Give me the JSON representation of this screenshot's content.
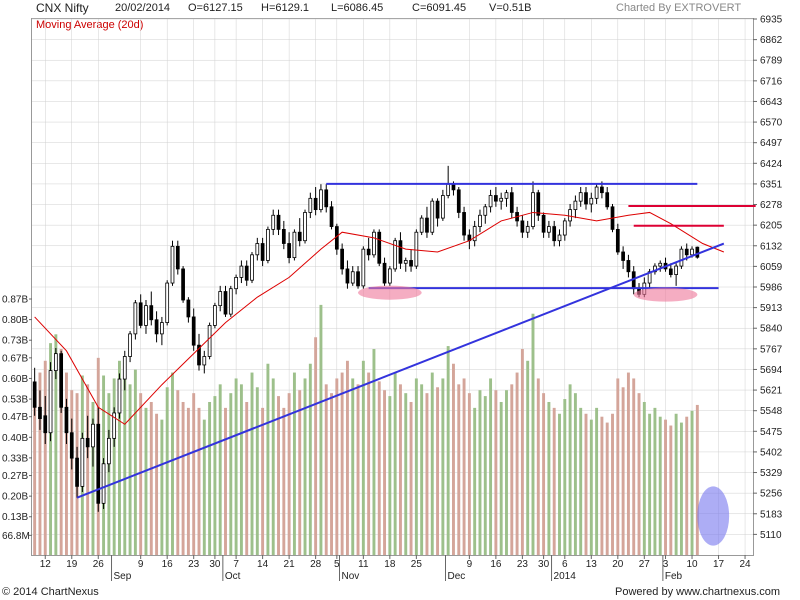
{
  "header": {
    "symbol": "CNX Nifty",
    "date": "20/02/2014",
    "open": "O=6127.15",
    "high": "H=6129.1",
    "low": "L=6086.45",
    "close": "C=6091.45",
    "volume": "V=0.51B",
    "charted_by": "Charted By EXTROVERT"
  },
  "footer": {
    "copyright": "© 2014 ChartNexus",
    "powered": "Powered by www.chartnexus.com"
  },
  "colors": {
    "up_candle": "#ffffff",
    "down_candle": "#000000",
    "volume_up": "#9dc08b",
    "volume_down": "#d4a59a",
    "moving_average": "#dd0000",
    "trendline": "#3333dd",
    "resistance": "#dd0033",
    "ellipse_pink": "#ee7799",
    "ellipse_blue": "#7777ee",
    "grid": "#d0d0d0"
  },
  "chart_data": {
    "type": "candlestick",
    "title": "CNX Nifty",
    "indicator_label": "Moving Average (20d)",
    "price_axis": {
      "ticks": [
        6935,
        6862,
        6789,
        6716,
        6643,
        6570,
        6497,
        6424,
        6351,
        6278,
        6205,
        6132,
        6059,
        5986,
        5913,
        5840,
        5767,
        5694,
        5621,
        5548,
        5475,
        5402,
        5329,
        5256,
        5183,
        5110
      ],
      "range": [
        5037,
        6935
      ]
    },
    "volume_axis": {
      "ticks": [
        "0.87B",
        "0.80B",
        "0.73B",
        "0.67B",
        "0.60B",
        "0.53B",
        "0.47B",
        "0.40B",
        "0.33B",
        "0.27B",
        "0.20B",
        "0.13B",
        "66.8M"
      ],
      "range_billions": [
        0.0,
        0.87
      ]
    },
    "x_axis": {
      "day_labels": [
        {
          "label": "12",
          "i": 2
        },
        {
          "label": "19",
          "i": 7
        },
        {
          "label": "26",
          "i": 12
        },
        {
          "label": "9",
          "i": 20
        },
        {
          "label": "16",
          "i": 25
        },
        {
          "label": "23",
          "i": 30
        },
        {
          "label": "30",
          "i": 34
        },
        {
          "label": "7",
          "i": 38
        },
        {
          "label": "14",
          "i": 43
        },
        {
          "label": "21",
          "i": 48
        },
        {
          "label": "28",
          "i": 53
        },
        {
          "label": "5",
          "i": 57
        },
        {
          "label": "11",
          "i": 62
        },
        {
          "label": "18",
          "i": 67
        },
        {
          "label": "25",
          "i": 72
        },
        {
          "label": "9",
          "i": 82
        },
        {
          "label": "16",
          "i": 87
        },
        {
          "label": "23",
          "i": 92
        },
        {
          "label": "30",
          "i": 96
        },
        {
          "label": "6",
          "i": 100
        },
        {
          "label": "13",
          "i": 105
        },
        {
          "label": "20",
          "i": 110
        },
        {
          "label": "27",
          "i": 115
        },
        {
          "label": "3",
          "i": 119
        },
        {
          "label": "10",
          "i": 124
        },
        {
          "label": "17",
          "i": 129
        },
        {
          "label": "24",
          "i": 134
        }
      ],
      "month_labels": [
        {
          "label": "Sep",
          "i": 15
        },
        {
          "label": "Oct",
          "i": 36
        },
        {
          "label": "Nov",
          "i": 58
        },
        {
          "label": "Dec",
          "i": 78
        },
        {
          "label": "2014",
          "i": 98
        },
        {
          "label": "Feb",
          "i": 119
        }
      ]
    },
    "candles": [
      [
        5650,
        5700,
        5530,
        5560,
        0.58
      ],
      [
        5560,
        5620,
        5480,
        5520,
        0.62
      ],
      [
        5530,
        5600,
        5430,
        5470,
        0.66
      ],
      [
        5470,
        5720,
        5440,
        5690,
        0.72
      ],
      [
        5690,
        5770,
        5660,
        5750,
        0.75
      ],
      [
        5750,
        5760,
        5540,
        5560,
        0.7
      ],
      [
        5560,
        5590,
        5430,
        5470,
        0.62
      ],
      [
        5470,
        5520,
        5340,
        5380,
        0.56
      ],
      [
        5380,
        5420,
        5240,
        5280,
        0.55
      ],
      [
        5280,
        5470,
        5260,
        5450,
        0.61
      ],
      [
        5450,
        5530,
        5380,
        5420,
        0.58
      ],
      [
        5420,
        5520,
        5350,
        5500,
        0.52
      ],
      [
        5500,
        5560,
        5190,
        5220,
        0.67
      ],
      [
        5220,
        5380,
        5200,
        5360,
        0.61
      ],
      [
        5360,
        5480,
        5330,
        5450,
        0.55
      ],
      [
        5450,
        5560,
        5420,
        5540,
        0.6
      ],
      [
        5540,
        5680,
        5520,
        5660,
        0.66
      ],
      [
        5660,
        5760,
        5620,
        5740,
        0.62
      ],
      [
        5740,
        5830,
        5720,
        5820,
        0.58
      ],
      [
        5820,
        5940,
        5800,
        5930,
        0.63
      ],
      [
        5930,
        5960,
        5840,
        5850,
        0.55
      ],
      [
        5850,
        5940,
        5820,
        5920,
        0.5
      ],
      [
        5920,
        5970,
        5850,
        5870,
        0.52
      ],
      [
        5870,
        5900,
        5790,
        5820,
        0.48
      ],
      [
        5820,
        5880,
        5780,
        5860,
        0.46
      ],
      [
        5860,
        6010,
        5850,
        6000,
        0.57
      ],
      [
        6000,
        6150,
        5990,
        6130,
        0.62
      ],
      [
        6130,
        6150,
        6030,
        6050,
        0.56
      ],
      [
        6050,
        6060,
        5930,
        5940,
        0.52
      ],
      [
        5940,
        5950,
        5860,
        5880,
        0.5
      ],
      [
        5880,
        5910,
        5760,
        5780,
        0.55
      ],
      [
        5780,
        5820,
        5690,
        5710,
        0.5
      ],
      [
        5710,
        5760,
        5680,
        5740,
        0.46
      ],
      [
        5740,
        5860,
        5730,
        5850,
        0.52
      ],
      [
        5850,
        5930,
        5840,
        5920,
        0.54
      ],
      [
        5920,
        5990,
        5900,
        5970,
        0.58
      ],
      [
        5970,
        5990,
        5880,
        5890,
        0.5
      ],
      [
        5890,
        5990,
        5880,
        5980,
        0.55
      ],
      [
        5980,
        6030,
        5960,
        6020,
        0.6
      ],
      [
        6020,
        6080,
        6000,
        6060,
        0.58
      ],
      [
        6060,
        6080,
        5990,
        6010,
        0.52
      ],
      [
        6010,
        6110,
        6000,
        6100,
        0.62
      ],
      [
        6100,
        6160,
        6080,
        6140,
        0.57
      ],
      [
        6140,
        6160,
        6060,
        6080,
        0.5
      ],
      [
        6080,
        6200,
        6070,
        6190,
        0.65
      ],
      [
        6190,
        6260,
        6170,
        6240,
        0.6
      ],
      [
        6240,
        6260,
        6170,
        6190,
        0.54
      ],
      [
        6190,
        6220,
        6120,
        6140,
        0.5
      ],
      [
        6140,
        6180,
        6070,
        6090,
        0.55
      ],
      [
        6090,
        6190,
        6080,
        6180,
        0.62
      ],
      [
        6180,
        6230,
        6130,
        6150,
        0.56
      ],
      [
        6150,
        6260,
        6140,
        6250,
        0.6
      ],
      [
        6250,
        6320,
        6230,
        6300,
        0.65
      ],
      [
        6300,
        6340,
        6240,
        6260,
        0.74
      ],
      [
        6260,
        6350,
        6250,
        6330,
        0.85
      ],
      [
        6330,
        6350,
        6250,
        6270,
        0.58
      ],
      [
        6270,
        6290,
        6190,
        6200,
        0.55
      ],
      [
        6200,
        6210,
        6100,
        6120,
        0.6
      ],
      [
        6120,
        6140,
        6030,
        6050,
        0.62
      ],
      [
        6050,
        6080,
        5980,
        6000,
        0.66
      ],
      [
        6000,
        6060,
        5990,
        6040,
        0.6
      ],
      [
        6040,
        6060,
        5980,
        5990,
        0.58
      ],
      [
        5990,
        6130,
        5980,
        6120,
        0.66
      ],
      [
        6120,
        6160,
        6080,
        6100,
        0.62
      ],
      [
        6100,
        6190,
        6090,
        6180,
        0.7
      ],
      [
        6180,
        6190,
        6060,
        6070,
        0.59
      ],
      [
        6070,
        6090,
        5990,
        6000,
        0.56
      ],
      [
        6000,
        6060,
        5990,
        6050,
        0.54
      ],
      [
        6050,
        6160,
        6040,
        6150,
        0.62
      ],
      [
        6150,
        6180,
        6050,
        6070,
        0.58
      ],
      [
        6070,
        6090,
        6040,
        6080,
        0.55
      ],
      [
        6080,
        6120,
        6040,
        6060,
        0.52
      ],
      [
        6060,
        6190,
        6050,
        6180,
        0.6
      ],
      [
        6180,
        6240,
        6170,
        6230,
        0.58
      ],
      [
        6230,
        6270,
        6160,
        6180,
        0.55
      ],
      [
        6180,
        6300,
        6170,
        6290,
        0.62
      ],
      [
        6290,
        6300,
        6200,
        6230,
        0.57
      ],
      [
        6230,
        6330,
        6220,
        6310,
        0.6
      ],
      [
        6310,
        6415,
        6300,
        6350,
        0.71
      ],
      [
        6350,
        6360,
        6310,
        6330,
        0.65
      ],
      [
        6330,
        6340,
        6230,
        6250,
        0.58
      ],
      [
        6250,
        6270,
        6150,
        6170,
        0.6
      ],
      [
        6170,
        6190,
        6120,
        6150,
        0.55
      ],
      [
        6150,
        6220,
        6130,
        6200,
        0.5
      ],
      [
        6200,
        6260,
        6180,
        6240,
        0.56
      ],
      [
        6240,
        6280,
        6210,
        6270,
        0.54
      ],
      [
        6270,
        6330,
        6250,
        6310,
        0.6
      ],
      [
        6310,
        6340,
        6270,
        6290,
        0.56
      ],
      [
        6290,
        6320,
        6260,
        6300,
        0.52
      ],
      [
        6300,
        6330,
        6270,
        6320,
        0.56
      ],
      [
        6320,
        6340,
        6230,
        6250,
        0.58
      ],
      [
        6250,
        6270,
        6200,
        6220,
        0.62
      ],
      [
        6220,
        6240,
        6160,
        6180,
        0.7
      ],
      [
        6180,
        6220,
        6160,
        6200,
        0.66
      ],
      [
        6200,
        6360,
        6190,
        6320,
        0.82
      ],
      [
        6320,
        6330,
        6220,
        6240,
        0.6
      ],
      [
        6240,
        6250,
        6160,
        6180,
        0.55
      ],
      [
        6180,
        6220,
        6160,
        6200,
        0.52
      ],
      [
        6200,
        6220,
        6130,
        6150,
        0.5
      ],
      [
        6150,
        6190,
        6130,
        6170,
        0.48
      ],
      [
        6170,
        6230,
        6150,
        6220,
        0.53
      ],
      [
        6220,
        6280,
        6200,
        6260,
        0.58
      ],
      [
        6260,
        6310,
        6230,
        6290,
        0.55
      ],
      [
        6290,
        6340,
        6270,
        6320,
        0.5
      ],
      [
        6320,
        6340,
        6260,
        6280,
        0.48
      ],
      [
        6280,
        6320,
        6250,
        6300,
        0.46
      ],
      [
        6300,
        6350,
        6280,
        6340,
        0.5
      ],
      [
        6340,
        6360,
        6300,
        6320,
        0.47
      ],
      [
        6320,
        6340,
        6260,
        6270,
        0.45
      ],
      [
        6270,
        6280,
        6180,
        6190,
        0.48
      ],
      [
        6190,
        6210,
        6100,
        6110,
        0.6
      ],
      [
        6110,
        6130,
        6050,
        6080,
        0.57
      ],
      [
        6080,
        6100,
        6020,
        6040,
        0.62
      ],
      [
        6040,
        6060,
        5960,
        5980,
        0.6
      ],
      [
        5980,
        6000,
        5950,
        5960,
        0.55
      ],
      [
        5960,
        6020,
        5950,
        6000,
        0.52
      ],
      [
        6000,
        6050,
        5980,
        6040,
        0.48
      ],
      [
        6040,
        6070,
        6030,
        6060,
        0.5
      ],
      [
        6060,
        6080,
        6040,
        6070,
        0.47
      ],
      [
        6070,
        6090,
        6040,
        6050,
        0.46
      ],
      [
        6050,
        6070,
        6020,
        6030,
        0.44
      ],
      [
        6030,
        6070,
        5990,
        6060,
        0.48
      ],
      [
        6060,
        6130,
        6050,
        6120,
        0.45
      ],
      [
        6120,
        6140,
        6080,
        6100,
        0.47
      ],
      [
        6100,
        6130,
        6090,
        6120,
        0.49
      ],
      [
        6127.15,
        6129.1,
        6086.45,
        6091.45,
        0.51
      ]
    ],
    "moving_average": [
      [
        0,
        5880
      ],
      [
        6,
        5760
      ],
      [
        12,
        5560
      ],
      [
        17,
        5500
      ],
      [
        24,
        5640
      ],
      [
        30,
        5750
      ],
      [
        36,
        5860
      ],
      [
        42,
        5950
      ],
      [
        48,
        6020
      ],
      [
        54,
        6120
      ],
      [
        58,
        6180
      ],
      [
        64,
        6160
      ],
      [
        70,
        6120
      ],
      [
        76,
        6110
      ],
      [
        82,
        6150
      ],
      [
        88,
        6220
      ],
      [
        94,
        6250
      ],
      [
        100,
        6240
      ],
      [
        106,
        6220
      ],
      [
        112,
        6240
      ],
      [
        116,
        6250
      ],
      [
        120,
        6210
      ],
      [
        126,
        6140
      ],
      [
        130,
        6110
      ]
    ],
    "trendlines": [
      {
        "color": "trendline",
        "p1": [
          8,
          5240
        ],
        "p2": [
          130,
          6140
        ]
      },
      {
        "color": "trendline",
        "p1": [
          55,
          6351
        ],
        "p2": [
          125,
          6351
        ]
      },
      {
        "color": "trendline",
        "p1": [
          63,
          5982
        ],
        "p2": [
          129,
          5982
        ]
      },
      {
        "color": "resistance",
        "p1": [
          112,
          6273
        ],
        "p2": [
          136,
          6273
        ]
      },
      {
        "color": "resistance",
        "p1": [
          113,
          6203
        ],
        "p2": [
          130,
          6203
        ]
      }
    ],
    "ellipses": [
      {
        "color": "ellipse_pink",
        "center": [
          67,
          5966
        ],
        "radius_bars": 6,
        "radius_price": 25
      },
      {
        "color": "ellipse_pink",
        "center": [
          119,
          5959
        ],
        "radius_bars": 6,
        "radius_price": 25
      },
      {
        "color": "ellipse_blue",
        "center": [
          128,
          5175
        ],
        "radius_bars": 3,
        "radius_price": 105
      }
    ]
  }
}
